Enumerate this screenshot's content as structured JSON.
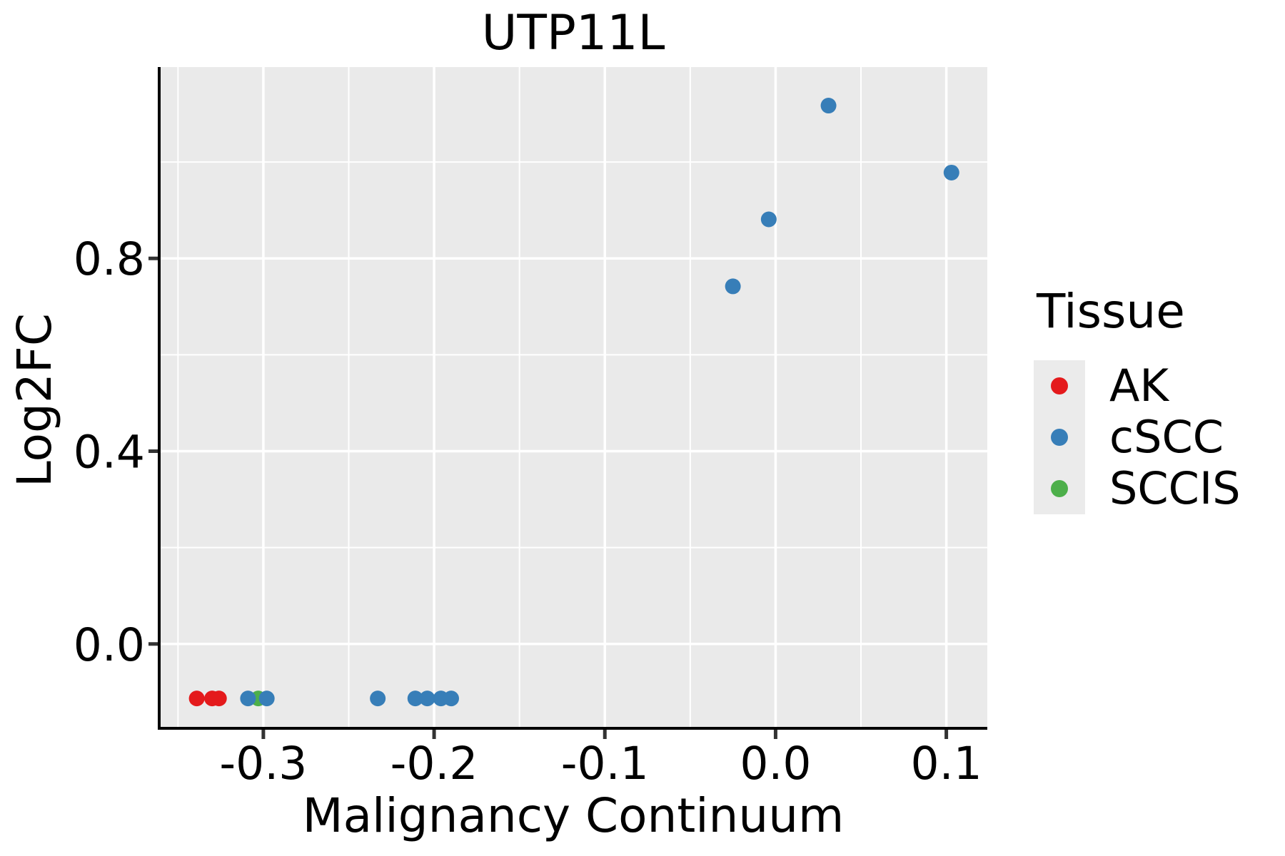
{
  "chart_data": {
    "type": "scatter",
    "title": "UTP11L",
    "xlabel": "Malignancy Continuum",
    "ylabel": "Log2FC",
    "xlim": [
      -0.361,
      0.124
    ],
    "ylim": [
      -0.175,
      1.197
    ],
    "x_major_ticks": [
      -0.3,
      -0.2,
      -0.1,
      0.0,
      0.1
    ],
    "x_tick_labels": [
      "-0.3",
      "-0.2",
      "-0.1",
      "0.0",
      "0.1"
    ],
    "x_minor_ticks": [
      -0.35,
      -0.25,
      -0.15,
      -0.05,
      0.05
    ],
    "y_major_ticks": [
      0.0,
      0.4,
      0.8
    ],
    "y_tick_labels": [
      "0.0",
      "0.4",
      "0.8"
    ],
    "y_minor_ticks": [
      0.2,
      0.6,
      1.0
    ],
    "grid": true,
    "panel_bg": "#EAEAEA",
    "grid_color": "#FFFFFF",
    "axis_color": "#000000",
    "tick_color": "#333333",
    "point_radius": 11,
    "legend": {
      "title": "Tissue",
      "position": "right",
      "entries": [
        {
          "label": "AK",
          "color": "#E41A1C"
        },
        {
          "label": "cSCC",
          "color": "#377EB8"
        },
        {
          "label": "SCCIS",
          "color": "#4DAF4A"
        }
      ]
    },
    "series": [
      {
        "name": "AK",
        "color": "#E41A1C",
        "points": [
          [
            -0.339,
            -0.113
          ],
          [
            -0.33,
            -0.113
          ],
          [
            -0.326,
            -0.113
          ]
        ]
      },
      {
        "name": "SCCIS",
        "color": "#4DAF4A",
        "points": [
          [
            -0.303,
            -0.113
          ]
        ]
      },
      {
        "name": "cSCC",
        "color": "#377EB8",
        "points": [
          [
            -0.309,
            -0.113
          ],
          [
            -0.298,
            -0.113
          ],
          [
            -0.233,
            -0.113
          ],
          [
            -0.211,
            -0.113
          ],
          [
            -0.204,
            -0.113
          ],
          [
            -0.196,
            -0.113
          ],
          [
            -0.19,
            -0.113
          ],
          [
            -0.025,
            0.742
          ],
          [
            -0.004,
            0.881
          ],
          [
            0.031,
            1.117
          ],
          [
            0.103,
            0.978
          ]
        ]
      }
    ]
  }
}
